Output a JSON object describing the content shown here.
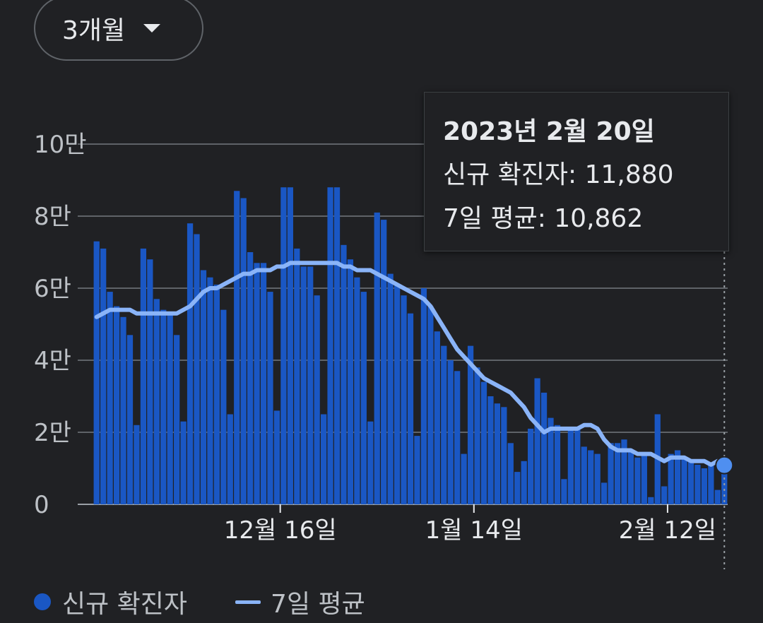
{
  "range_selector": {
    "label": "3개월",
    "icon": "dropdown-caret-icon"
  },
  "tooltip": {
    "date": "2023년 2월 20일",
    "new_cases": "신규 확진자: 11,880",
    "avg": "7일 평균: 10,862"
  },
  "legend": {
    "bars": "신규 확진자",
    "line": "7일 평균"
  },
  "colors": {
    "bar": "#1a57c4",
    "line": "#8ab4f8",
    "grid": "#5f6368",
    "highlight": "#4f8ff0"
  },
  "chart_data": {
    "type": "bar",
    "title": "",
    "xlabel": "",
    "ylabel": "",
    "ylim": [
      0,
      100000
    ],
    "y_ticks": [
      0,
      20000,
      40000,
      60000,
      80000,
      100000
    ],
    "y_tick_labels": [
      "0",
      "2만",
      "4만",
      "6만",
      "8만",
      "10만"
    ],
    "x_ticks": [
      {
        "index": 28,
        "label": "12월 16일"
      },
      {
        "index": 57,
        "label": "1월 14일"
      },
      {
        "index": 86,
        "label": "2월 12일"
      }
    ],
    "start_date": "2022-11-18",
    "end_date": "2023-02-20",
    "highlight_index": 94,
    "series": [
      {
        "name": "신규 확진자",
        "values": [
          73000,
          71000,
          59000,
          55000,
          52000,
          47000,
          22000,
          71000,
          68000,
          57000,
          54000,
          53000,
          47000,
          23000,
          78000,
          75000,
          65000,
          63000,
          61000,
          54000,
          25000,
          87000,
          85000,
          70000,
          67000,
          67000,
          59000,
          26000,
          88000,
          88000,
          71000,
          66000,
          66000,
          58000,
          25000,
          88000,
          88000,
          72000,
          68000,
          63000,
          59000,
          23000,
          81000,
          79000,
          64000,
          61000,
          58000,
          53000,
          19000,
          60000,
          55000,
          48000,
          44000,
          40000,
          37000,
          14000,
          44000,
          38000,
          34000,
          30000,
          28000,
          27000,
          17000,
          9000,
          12000,
          21000,
          35000,
          31000,
          24000,
          22000,
          7000,
          21000,
          21000,
          16000,
          15000,
          14000,
          6000,
          17000,
          17000,
          18000,
          15000,
          13000,
          14000,
          2000,
          25000,
          5000,
          14000,
          15000,
          13000,
          12000,
          11000,
          10000,
          11000,
          4000,
          11880
        ]
      },
      {
        "name": "7일 평균",
        "values": [
          52000,
          53000,
          54000,
          54000,
          54000,
          54000,
          53000,
          53000,
          53000,
          53000,
          53000,
          53000,
          53000,
          54000,
          55000,
          57000,
          59000,
          60000,
          60000,
          61000,
          62000,
          63000,
          64000,
          64000,
          65000,
          65000,
          65000,
          66000,
          66000,
          67000,
          67000,
          67000,
          67000,
          67000,
          67000,
          67000,
          67000,
          66000,
          66000,
          65000,
          65000,
          65000,
          64000,
          63000,
          62000,
          61000,
          60000,
          59000,
          58000,
          57000,
          55000,
          52000,
          49000,
          46000,
          43000,
          41000,
          39000,
          37000,
          35000,
          34000,
          33000,
          32000,
          31000,
          29000,
          27000,
          24000,
          22000,
          20000,
          21000,
          21000,
          21000,
          21000,
          21000,
          22000,
          22000,
          21000,
          18000,
          16000,
          15000,
          15000,
          15000,
          14000,
          14000,
          14000,
          13000,
          12000,
          13000,
          13000,
          13000,
          12000,
          12000,
          12000,
          11000,
          12000,
          10862
        ]
      }
    ]
  }
}
